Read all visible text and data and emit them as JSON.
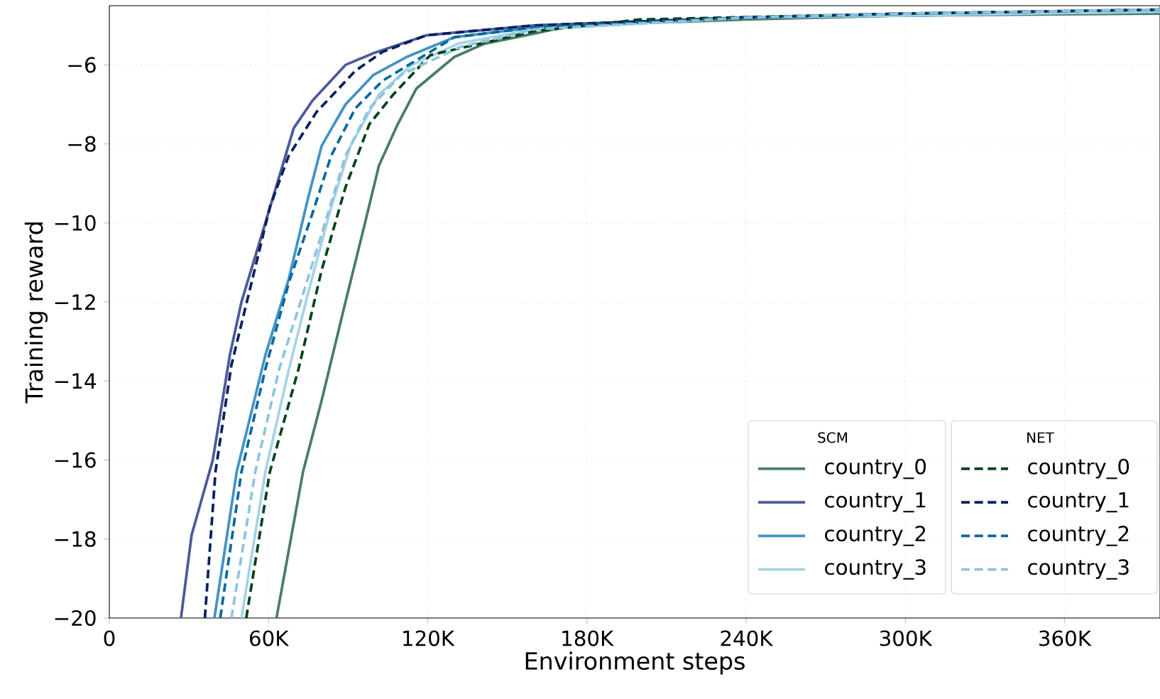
{
  "chart_data": {
    "type": "line",
    "xlabel": "Environment steps",
    "ylabel": "Training reward",
    "xlim": [
      0,
      396000
    ],
    "ylim": [
      -20,
      -4.5
    ],
    "xticks": [
      0,
      {
        "value": 60000,
        "label": "60K"
      },
      {
        "value": 120000,
        "label": "120K"
      },
      {
        "value": 180000,
        "label": "180K"
      },
      {
        "value": 240000,
        "label": "240K"
      },
      {
        "value": 300000,
        "label": "300K"
      },
      {
        "value": 360000,
        "label": "360K"
      }
    ],
    "yticks": [
      {
        "value": -20,
        "label": "−20"
      },
      {
        "value": -18,
        "label": "−18"
      },
      {
        "value": -16,
        "label": "−16"
      },
      {
        "value": -14,
        "label": "−14"
      },
      {
        "value": -12,
        "label": "−12"
      },
      {
        "value": -10,
        "label": "−10"
      },
      {
        "value": -8,
        "label": "−8"
      },
      {
        "value": -6,
        "label": "−6"
      }
    ],
    "grid": true,
    "legend": "bottom right",
    "annotations": [
      "SCM",
      "NET"
    ],
    "series": [
      {
        "name": "country_0",
        "color": "#4a7c68",
        "line_style": "solid",
        "x": [
          63000,
          73000,
          80000,
          89000,
          96000,
          101600,
          108700,
          115700,
          130000,
          141000,
          160700,
          174000,
          240000,
          300000,
          396000
        ],
        "values": [
          -20,
          -16.3,
          -14.5,
          -12,
          -10.1,
          -8.55,
          -7.5,
          -6.6,
          -5.8,
          -5.47,
          -5.2,
          -5.0,
          -4.85,
          -4.75,
          -4.7
        ]
      },
      {
        "name": "country_1",
        "color": "#4b5a9a",
        "line_style": "solid",
        "x": [
          27000,
          31000,
          39000,
          45400,
          49800,
          58800,
          69500,
          76600,
          89000,
          99600,
          119500,
          160000,
          240000,
          300000,
          396000
        ],
        "values": [
          -20,
          -17.9,
          -16,
          -13.35,
          -12,
          -10,
          -7.6,
          -6.9,
          -6.0,
          -5.7,
          -5.25,
          -5.0,
          -4.8,
          -4.75,
          -4.65
        ]
      },
      {
        "name": "country_2",
        "color": "#4393c3",
        "line_style": "solid",
        "x": [
          39600,
          48000,
          58800,
          67700,
          74800,
          80000,
          89000,
          99600,
          112000,
          130000,
          160000,
          240000,
          300000,
          396000
        ],
        "values": [
          -20,
          -16.3,
          -13.35,
          -11.4,
          -9.4,
          -8.05,
          -7.0,
          -6.25,
          -5.8,
          -5.3,
          -5.05,
          -4.8,
          -4.75,
          -4.65
        ]
      },
      {
        "name": "country_3",
        "color": "#a6d4e6",
        "line_style": "solid",
        "x": [
          49800,
          58800,
          67700,
          74800,
          83600,
          90900,
          101600,
          114000,
          132000,
          160000,
          240000,
          300000,
          396000
        ],
        "values": [
          -20,
          -16.3,
          -13.7,
          -11.8,
          -9.6,
          -8.05,
          -6.75,
          -6.0,
          -5.45,
          -5.1,
          -4.8,
          -4.75,
          -4.65
        ]
      },
      {
        "name": "country_0",
        "color": "#00441b",
        "line_style": "dashed",
        "x": [
          51600,
          60500,
          71300,
          80000,
          89000,
          98000,
          107000,
          121000,
          160000,
          200000,
          300000,
          396000
        ],
        "values": [
          -20,
          -16.3,
          -13.7,
          -11.2,
          -9.1,
          -7.5,
          -6.75,
          -5.75,
          -5.15,
          -4.85,
          -4.7,
          -4.6
        ]
      },
      {
        "name": "country_1",
        "color": "#08205e",
        "line_style": "dashed",
        "x": [
          36000,
          40000,
          46000,
          54000,
          60500,
          67600,
          78000,
          92700,
          103000,
          119500,
          160000,
          240000,
          300000,
          396000
        ],
        "values": [
          -20,
          -16.3,
          -13.6,
          -11.4,
          -9.6,
          -8.3,
          -7.2,
          -6.15,
          -5.67,
          -5.25,
          -5.0,
          -4.8,
          -4.7,
          -4.6
        ]
      },
      {
        "name": "country_2",
        "color": "#0868a0",
        "line_style": "dashed",
        "x": [
          41800,
          49800,
          58800,
          67700,
          76600,
          83600,
          92700,
          103000,
          117700,
          130000,
          160000,
          240000,
          300000,
          396000
        ],
        "values": [
          -20,
          -16.3,
          -13.7,
          -11.5,
          -9.75,
          -8.3,
          -7.1,
          -6.4,
          -5.8,
          -5.3,
          -5.05,
          -4.8,
          -4.7,
          -4.6
        ]
      },
      {
        "name": "country_3",
        "color": "#8ec4dd",
        "line_style": "dashed",
        "x": [
          46000,
          55000,
          64000,
          73000,
          82000,
          89000,
          98000,
          110000,
          132000,
          160000,
          240000,
          300000,
          396000
        ],
        "values": [
          -20,
          -16.3,
          -13.7,
          -11.8,
          -9.85,
          -8.3,
          -7.1,
          -6.25,
          -5.55,
          -5.1,
          -4.8,
          -4.7,
          -4.6
        ]
      }
    ]
  }
}
